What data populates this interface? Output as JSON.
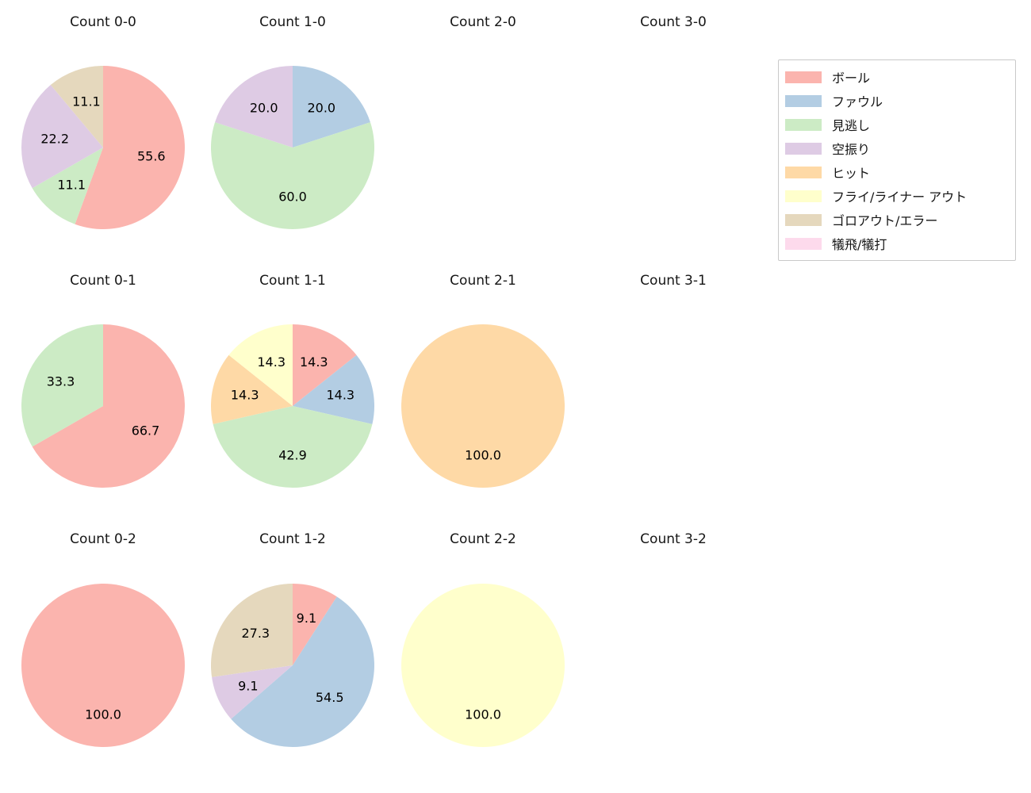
{
  "legend": {
    "items": [
      {
        "label": "ボール",
        "color": "#fbb4ae"
      },
      {
        "label": "ファウル",
        "color": "#b3cde3"
      },
      {
        "label": "見逃し",
        "color": "#ccebc5"
      },
      {
        "label": "空振り",
        "color": "#decbe4"
      },
      {
        "label": "ヒット",
        "color": "#fed9a6"
      },
      {
        "label": "フライ/ライナー アウト",
        "color": "#ffffcc"
      },
      {
        "label": "ゴロアウト/エラー",
        "color": "#e5d8bd"
      },
      {
        "label": "犠飛/犠打",
        "color": "#fddaec"
      }
    ]
  },
  "chart_data": [
    {
      "type": "pie",
      "title": "Count 0-0",
      "unit": "percent",
      "start_angle": 90,
      "direction": "clockwise",
      "slices": [
        {
          "label": "ボール",
          "value": 55.6
        },
        {
          "label": "見逃し",
          "value": 11.1
        },
        {
          "label": "空振り",
          "value": 22.2
        },
        {
          "label": "ゴロアウト/エラー",
          "value": 11.1
        }
      ]
    },
    {
      "type": "pie",
      "title": "Count 1-0",
      "unit": "percent",
      "start_angle": 90,
      "direction": "clockwise",
      "slices": [
        {
          "label": "ファウル",
          "value": 20.0
        },
        {
          "label": "見逃し",
          "value": 60.0
        },
        {
          "label": "空振り",
          "value": 20.0
        }
      ]
    },
    {
      "type": "pie",
      "title": "Count 2-0",
      "unit": "percent",
      "start_angle": 90,
      "direction": "clockwise",
      "slices": []
    },
    {
      "type": "pie",
      "title": "Count 3-0",
      "unit": "percent",
      "start_angle": 90,
      "direction": "clockwise",
      "slices": []
    },
    {
      "type": "pie",
      "title": "Count 0-1",
      "unit": "percent",
      "start_angle": 90,
      "direction": "clockwise",
      "slices": [
        {
          "label": "ボール",
          "value": 66.7
        },
        {
          "label": "見逃し",
          "value": 33.3
        }
      ]
    },
    {
      "type": "pie",
      "title": "Count 1-1",
      "unit": "percent",
      "start_angle": 90,
      "direction": "clockwise",
      "slices": [
        {
          "label": "ボール",
          "value": 14.3
        },
        {
          "label": "ファウル",
          "value": 14.3
        },
        {
          "label": "見逃し",
          "value": 42.9
        },
        {
          "label": "ヒット",
          "value": 14.3
        },
        {
          "label": "フライ/ライナー アウト",
          "value": 14.3
        }
      ]
    },
    {
      "type": "pie",
      "title": "Count 2-1",
      "unit": "percent",
      "start_angle": 90,
      "direction": "clockwise",
      "slices": [
        {
          "label": "ヒット",
          "value": 100.0
        }
      ]
    },
    {
      "type": "pie",
      "title": "Count 3-1",
      "unit": "percent",
      "start_angle": 90,
      "direction": "clockwise",
      "slices": []
    },
    {
      "type": "pie",
      "title": "Count 0-2",
      "unit": "percent",
      "start_angle": 90,
      "direction": "clockwise",
      "slices": [
        {
          "label": "ボール",
          "value": 100.0
        }
      ]
    },
    {
      "type": "pie",
      "title": "Count 1-2",
      "unit": "percent",
      "start_angle": 90,
      "direction": "clockwise",
      "slices": [
        {
          "label": "ボール",
          "value": 9.1
        },
        {
          "label": "ファウル",
          "value": 54.5
        },
        {
          "label": "空振り",
          "value": 9.1
        },
        {
          "label": "ゴロアウト/エラー",
          "value": 27.3
        }
      ]
    },
    {
      "type": "pie",
      "title": "Count 2-2",
      "unit": "percent",
      "start_angle": 90,
      "direction": "clockwise",
      "slices": [
        {
          "label": "フライ/ライナー アウト",
          "value": 100.0
        }
      ]
    },
    {
      "type": "pie",
      "title": "Count 3-2",
      "unit": "percent",
      "start_angle": 90,
      "direction": "clockwise",
      "slices": []
    }
  ]
}
